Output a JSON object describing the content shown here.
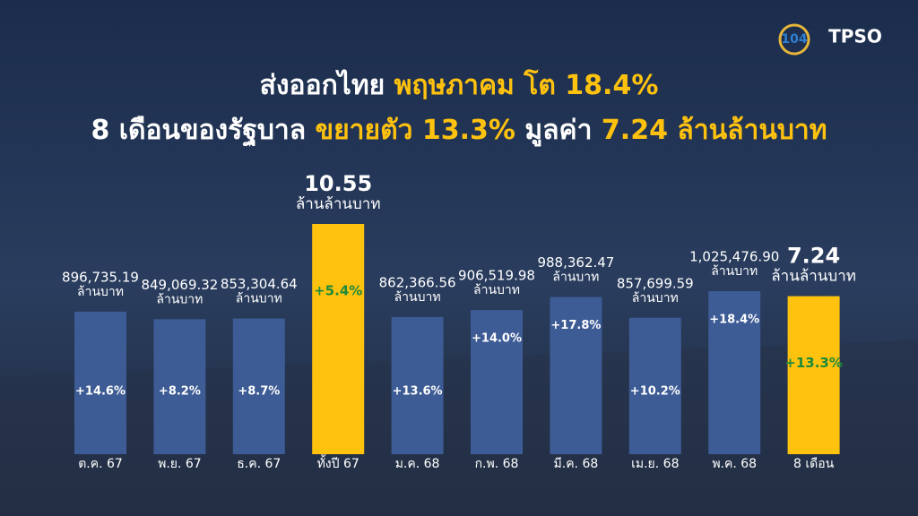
{
  "chart_data": {
    "type": "bar",
    "logos": [
      "104",
      "TPSO"
    ],
    "title_lines": [
      [
        {
          "text": "ส่งออกไทย ",
          "color": "#ffffff"
        },
        {
          "text": "พฤษภาคม โต 18.4%",
          "color": "#ffc20e"
        }
      ],
      [
        {
          "text": "8 เดือนของรัฐบาล ",
          "color": "#ffffff"
        },
        {
          "text": "ขยายตัว 13.3%",
          "color": "#ffc20e"
        },
        {
          "text": " มูลค่า ",
          "color": "#ffffff"
        },
        {
          "text": "7.24 ล้านล้านบาท",
          "color": "#ffc20e"
        }
      ]
    ],
    "categories": [
      "ต.ค. 67",
      "พ.ย. 67",
      "ธ.ค. 67",
      "ทั้งปี 67",
      "ม.ค. 68",
      "ก.พ. 68",
      "มี.ค. 68",
      "เม.ย. 68",
      "พ.ค. 68",
      "8 เดือน"
    ],
    "values": [
      896735.19,
      849069.32,
      853304.64,
      10.55,
      862366.56,
      906519.98,
      988362.47,
      857699.59,
      1025476.9,
      7.24
    ],
    "value_labels": [
      "896,735.19",
      "849,069.32",
      "853,304.64",
      "10.55",
      "862,366.56",
      "906,519.98",
      "988,362.47",
      "857,699.59",
      "1,025,476.90",
      "7.24"
    ],
    "units": [
      "ล้านบาท",
      "ล้านบาท",
      "ล้านบาท",
      "ล้านล้านบาท",
      "ล้านบาท",
      "ล้านบาท",
      "ล้านบาท",
      "ล้านบาท",
      "ล้านบาท",
      "ล้านล้านบาท"
    ],
    "growth_labels": [
      "+14.6%",
      "+8.2%",
      "+8.7%",
      "+5.4%",
      "+13.6%",
      "+14.0%",
      "+17.8%",
      "+10.2%",
      "+18.4%",
      "+13.3%"
    ],
    "colors": [
      "#3d5b94",
      "#3d5b94",
      "#3d5b94",
      "#ffc20e",
      "#3d5b94",
      "#3d5b94",
      "#3d5b94",
      "#3d5b94",
      "#3d5b94",
      "#ffc20e"
    ]
  }
}
